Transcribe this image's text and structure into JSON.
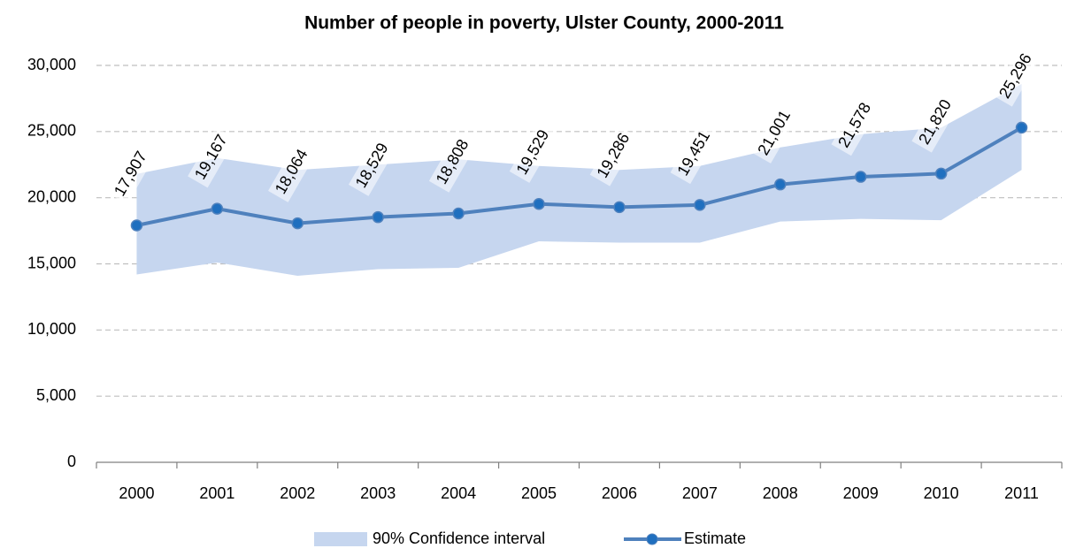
{
  "chart_data": {
    "type": "line",
    "title": "Number of people in poverty, Ulster County, 2000-2011",
    "categories": [
      "2000",
      "2001",
      "2002",
      "2003",
      "2004",
      "2005",
      "2006",
      "2007",
      "2008",
      "2009",
      "2010",
      "2011"
    ],
    "series": [
      {
        "name": "90% Confidence interval",
        "color": "#c6d6ef",
        "upper": [
          21800,
          23000,
          22100,
          22500,
          22900,
          22400,
          22100,
          22400,
          23800,
          24800,
          25300,
          28600
        ],
        "lower": [
          14200,
          15100,
          14100,
          14600,
          14700,
          16700,
          16600,
          16600,
          18200,
          18400,
          18300,
          22100
        ]
      },
      {
        "name": "Estimate",
        "color": "#4f81bd",
        "values": [
          17907,
          19167,
          18064,
          18529,
          18808,
          19529,
          19286,
          19451,
          21001,
          21578,
          21820,
          25296
        ],
        "value_labels": [
          "17,907",
          "19,167",
          "18,064",
          "18,529",
          "18,808",
          "19,529",
          "19,286",
          "19,451",
          "21,001",
          "21,578",
          "21,820",
          "25,296"
        ]
      }
    ],
    "ylim": [
      0,
      30000
    ],
    "yticks": [
      0,
      {
        "value": 5000,
        "label": "5,000"
      },
      {
        "value": 10000,
        "label": "10,000"
      },
      {
        "value": 15000,
        "label": "15,000"
      },
      {
        "value": 20000,
        "label": "20,000"
      },
      {
        "value": 25000,
        "label": "25,000"
      },
      {
        "value": 30000,
        "label": "30,000"
      }
    ],
    "grid": true,
    "legend": "bottom"
  }
}
